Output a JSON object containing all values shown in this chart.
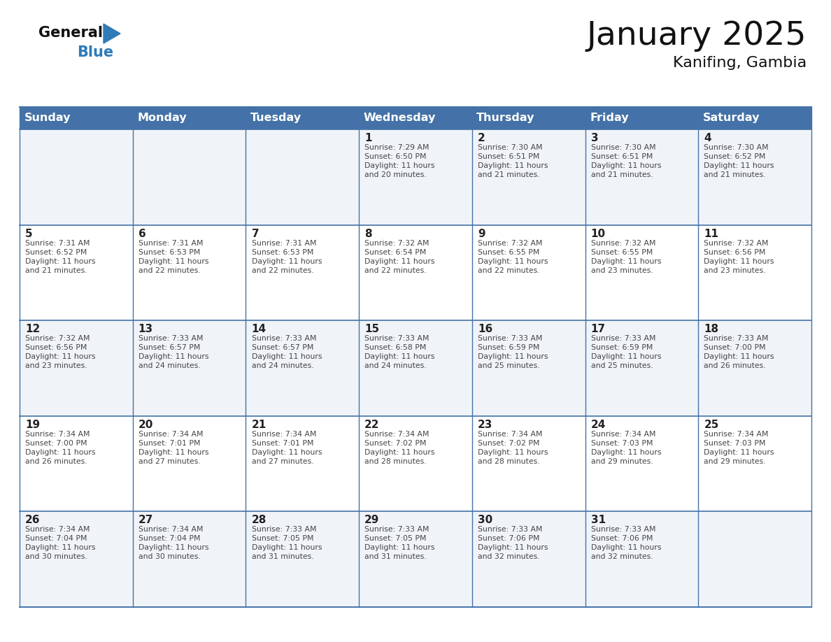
{
  "title": "January 2025",
  "subtitle": "Kanifing, Gambia",
  "days_of_week": [
    "Sunday",
    "Monday",
    "Tuesday",
    "Wednesday",
    "Thursday",
    "Friday",
    "Saturday"
  ],
  "header_bg": "#4472A8",
  "header_text": "#FFFFFF",
  "grid_line_color": "#4472A8",
  "cell_bg_even": "#F0F4F8",
  "cell_bg_odd": "#FFFFFF",
  "text_color": "#444444",
  "title_color": "#111111",
  "logo_general_color": "#111111",
  "logo_blue_color": "#2E7BB8",
  "figsize": [
    11.88,
    9.18
  ],
  "dpi": 100,
  "calendar_data": [
    [
      null,
      null,
      null,
      {
        "day": 1,
        "sunrise": "7:29 AM",
        "sunset": "6:50 PM",
        "daylight": "11 hours and 20 minutes."
      },
      {
        "day": 2,
        "sunrise": "7:30 AM",
        "sunset": "6:51 PM",
        "daylight": "11 hours and 21 minutes."
      },
      {
        "day": 3,
        "sunrise": "7:30 AM",
        "sunset": "6:51 PM",
        "daylight": "11 hours and 21 minutes."
      },
      {
        "day": 4,
        "sunrise": "7:30 AM",
        "sunset": "6:52 PM",
        "daylight": "11 hours and 21 minutes."
      }
    ],
    [
      {
        "day": 5,
        "sunrise": "7:31 AM",
        "sunset": "6:52 PM",
        "daylight": "11 hours and 21 minutes."
      },
      {
        "day": 6,
        "sunrise": "7:31 AM",
        "sunset": "6:53 PM",
        "daylight": "11 hours and 22 minutes."
      },
      {
        "day": 7,
        "sunrise": "7:31 AM",
        "sunset": "6:53 PM",
        "daylight": "11 hours and 22 minutes."
      },
      {
        "day": 8,
        "sunrise": "7:32 AM",
        "sunset": "6:54 PM",
        "daylight": "11 hours and 22 minutes."
      },
      {
        "day": 9,
        "sunrise": "7:32 AM",
        "sunset": "6:55 PM",
        "daylight": "11 hours and 22 minutes."
      },
      {
        "day": 10,
        "sunrise": "7:32 AM",
        "sunset": "6:55 PM",
        "daylight": "11 hours and 23 minutes."
      },
      {
        "day": 11,
        "sunrise": "7:32 AM",
        "sunset": "6:56 PM",
        "daylight": "11 hours and 23 minutes."
      }
    ],
    [
      {
        "day": 12,
        "sunrise": "7:32 AM",
        "sunset": "6:56 PM",
        "daylight": "11 hours and 23 minutes."
      },
      {
        "day": 13,
        "sunrise": "7:33 AM",
        "sunset": "6:57 PM",
        "daylight": "11 hours and 24 minutes."
      },
      {
        "day": 14,
        "sunrise": "7:33 AM",
        "sunset": "6:57 PM",
        "daylight": "11 hours and 24 minutes."
      },
      {
        "day": 15,
        "sunrise": "7:33 AM",
        "sunset": "6:58 PM",
        "daylight": "11 hours and 24 minutes."
      },
      {
        "day": 16,
        "sunrise": "7:33 AM",
        "sunset": "6:59 PM",
        "daylight": "11 hours and 25 minutes."
      },
      {
        "day": 17,
        "sunrise": "7:33 AM",
        "sunset": "6:59 PM",
        "daylight": "11 hours and 25 minutes."
      },
      {
        "day": 18,
        "sunrise": "7:33 AM",
        "sunset": "7:00 PM",
        "daylight": "11 hours and 26 minutes."
      }
    ],
    [
      {
        "day": 19,
        "sunrise": "7:34 AM",
        "sunset": "7:00 PM",
        "daylight": "11 hours and 26 minutes."
      },
      {
        "day": 20,
        "sunrise": "7:34 AM",
        "sunset": "7:01 PM",
        "daylight": "11 hours and 27 minutes."
      },
      {
        "day": 21,
        "sunrise": "7:34 AM",
        "sunset": "7:01 PM",
        "daylight": "11 hours and 27 minutes."
      },
      {
        "day": 22,
        "sunrise": "7:34 AM",
        "sunset": "7:02 PM",
        "daylight": "11 hours and 28 minutes."
      },
      {
        "day": 23,
        "sunrise": "7:34 AM",
        "sunset": "7:02 PM",
        "daylight": "11 hours and 28 minutes."
      },
      {
        "day": 24,
        "sunrise": "7:34 AM",
        "sunset": "7:03 PM",
        "daylight": "11 hours and 29 minutes."
      },
      {
        "day": 25,
        "sunrise": "7:34 AM",
        "sunset": "7:03 PM",
        "daylight": "11 hours and 29 minutes."
      }
    ],
    [
      {
        "day": 26,
        "sunrise": "7:34 AM",
        "sunset": "7:04 PM",
        "daylight": "11 hours and 30 minutes."
      },
      {
        "day": 27,
        "sunrise": "7:34 AM",
        "sunset": "7:04 PM",
        "daylight": "11 hours and 30 minutes."
      },
      {
        "day": 28,
        "sunrise": "7:33 AM",
        "sunset": "7:05 PM",
        "daylight": "11 hours and 31 minutes."
      },
      {
        "day": 29,
        "sunrise": "7:33 AM",
        "sunset": "7:05 PM",
        "daylight": "11 hours and 31 minutes."
      },
      {
        "day": 30,
        "sunrise": "7:33 AM",
        "sunset": "7:06 PM",
        "daylight": "11 hours and 32 minutes."
      },
      {
        "day": 31,
        "sunrise": "7:33 AM",
        "sunset": "7:06 PM",
        "daylight": "11 hours and 32 minutes."
      },
      null
    ]
  ]
}
